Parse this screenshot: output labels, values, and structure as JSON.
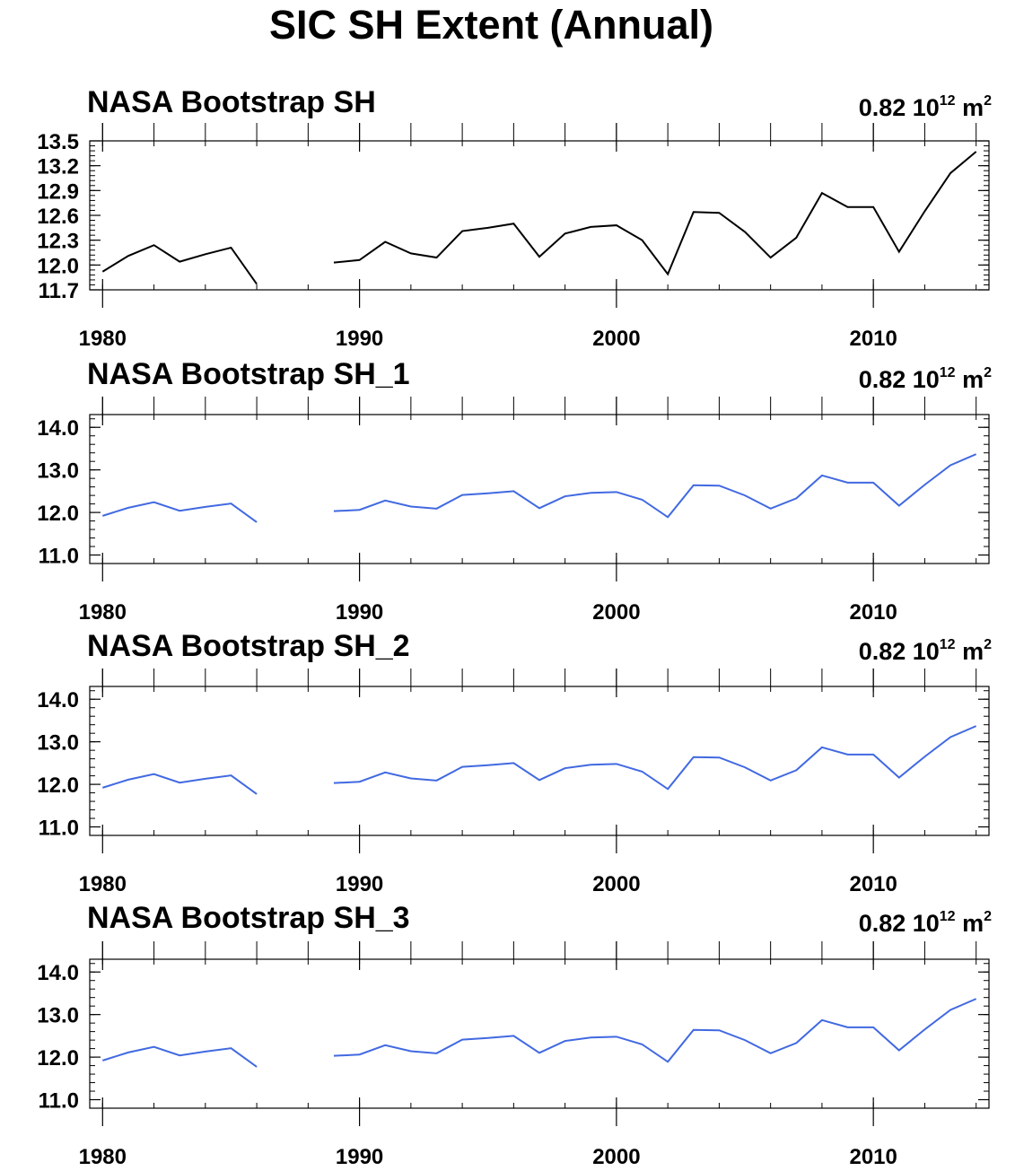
{
  "title": "SIC SH Extent (Annual)",
  "chart_data": [
    {
      "type": "line",
      "title": "NASA Bootstrap SH",
      "annotation": {
        "value": "0.82 10",
        "exp": "12",
        "unit": " m",
        "unit_exp": "2"
      },
      "color": "#000000",
      "ylim": [
        11.7,
        13.5
      ],
      "yticks": [
        "13.5",
        "13.2",
        "12.9",
        "12.6",
        "12.3",
        "12.0",
        "11.7"
      ],
      "xlim": [
        1979.5,
        2014.5
      ],
      "xticks": [
        "1980",
        "1990",
        "2000",
        "2010"
      ],
      "x": [
        1980,
        1981,
        1982,
        1983,
        1984,
        1985,
        1986,
        1987,
        1988,
        1989,
        1990,
        1991,
        1992,
        1993,
        1994,
        1995,
        1996,
        1997,
        1998,
        1999,
        2000,
        2001,
        2002,
        2003,
        2004,
        2005,
        2006,
        2007,
        2008,
        2009,
        2010,
        2011,
        2012,
        2013,
        2014
      ],
      "values": [
        11.92,
        12.11,
        12.24,
        12.04,
        12.13,
        12.21,
        11.77,
        null,
        null,
        12.03,
        12.06,
        12.28,
        12.14,
        12.09,
        12.41,
        12.45,
        12.5,
        12.1,
        12.38,
        12.46,
        12.48,
        12.3,
        11.89,
        12.64,
        12.63,
        12.4,
        12.09,
        12.33,
        12.87,
        12.7,
        12.7,
        12.16,
        12.65,
        13.11,
        13.37
      ]
    },
    {
      "type": "line",
      "title": "NASA Bootstrap SH_1",
      "annotation": {
        "value": "0.82 10",
        "exp": "12",
        "unit": " m",
        "unit_exp": "2"
      },
      "color": "#4169e1",
      "ylim": [
        10.8,
        14.3
      ],
      "yticks": [
        "14.0",
        "13.0",
        "12.0",
        "11.0"
      ],
      "xlim": [
        1979.5,
        2014.5
      ],
      "xticks": [
        "1980",
        "1990",
        "2000",
        "2010"
      ],
      "x": [
        1980,
        1981,
        1982,
        1983,
        1984,
        1985,
        1986,
        1987,
        1988,
        1989,
        1990,
        1991,
        1992,
        1993,
        1994,
        1995,
        1996,
        1997,
        1998,
        1999,
        2000,
        2001,
        2002,
        2003,
        2004,
        2005,
        2006,
        2007,
        2008,
        2009,
        2010,
        2011,
        2012,
        2013,
        2014
      ],
      "values": [
        11.92,
        12.11,
        12.24,
        12.04,
        12.13,
        12.21,
        11.77,
        null,
        null,
        12.03,
        12.06,
        12.28,
        12.14,
        12.09,
        12.41,
        12.45,
        12.5,
        12.1,
        12.38,
        12.46,
        12.48,
        12.3,
        11.89,
        12.64,
        12.63,
        12.4,
        12.09,
        12.33,
        12.87,
        12.7,
        12.7,
        12.16,
        12.65,
        13.11,
        13.37
      ]
    },
    {
      "type": "line",
      "title": "NASA Bootstrap SH_2",
      "annotation": {
        "value": "0.82 10",
        "exp": "12",
        "unit": " m",
        "unit_exp": "2"
      },
      "color": "#4169e1",
      "ylim": [
        10.8,
        14.3
      ],
      "yticks": [
        "14.0",
        "13.0",
        "12.0",
        "11.0"
      ],
      "xlim": [
        1979.5,
        2014.5
      ],
      "xticks": [
        "1980",
        "1990",
        "2000",
        "2010"
      ],
      "x": [
        1980,
        1981,
        1982,
        1983,
        1984,
        1985,
        1986,
        1987,
        1988,
        1989,
        1990,
        1991,
        1992,
        1993,
        1994,
        1995,
        1996,
        1997,
        1998,
        1999,
        2000,
        2001,
        2002,
        2003,
        2004,
        2005,
        2006,
        2007,
        2008,
        2009,
        2010,
        2011,
        2012,
        2013,
        2014
      ],
      "values": [
        11.92,
        12.11,
        12.24,
        12.04,
        12.13,
        12.21,
        11.77,
        null,
        null,
        12.03,
        12.06,
        12.28,
        12.14,
        12.09,
        12.41,
        12.45,
        12.5,
        12.1,
        12.38,
        12.46,
        12.48,
        12.3,
        11.89,
        12.64,
        12.63,
        12.4,
        12.09,
        12.33,
        12.87,
        12.7,
        12.7,
        12.16,
        12.65,
        13.11,
        13.37
      ]
    },
    {
      "type": "line",
      "title": "NASA Bootstrap SH_3",
      "annotation": {
        "value": "0.82 10",
        "exp": "12",
        "unit": " m",
        "unit_exp": "2"
      },
      "color": "#4169e1",
      "ylim": [
        10.8,
        14.3
      ],
      "yticks": [
        "14.0",
        "13.0",
        "12.0",
        "11.0"
      ],
      "xlim": [
        1979.5,
        2014.5
      ],
      "xticks": [
        "1980",
        "1990",
        "2000",
        "2010"
      ],
      "x": [
        1980,
        1981,
        1982,
        1983,
        1984,
        1985,
        1986,
        1987,
        1988,
        1989,
        1990,
        1991,
        1992,
        1993,
        1994,
        1995,
        1996,
        1997,
        1998,
        1999,
        2000,
        2001,
        2002,
        2003,
        2004,
        2005,
        2006,
        2007,
        2008,
        2009,
        2010,
        2011,
        2012,
        2013,
        2014
      ],
      "values": [
        11.92,
        12.11,
        12.24,
        12.04,
        12.13,
        12.21,
        11.77,
        null,
        null,
        12.03,
        12.06,
        12.28,
        12.14,
        12.09,
        12.41,
        12.45,
        12.5,
        12.1,
        12.38,
        12.46,
        12.48,
        12.3,
        11.89,
        12.64,
        12.63,
        12.4,
        12.09,
        12.33,
        12.87,
        12.7,
        12.7,
        12.16,
        12.65,
        13.11,
        13.37
      ]
    }
  ]
}
